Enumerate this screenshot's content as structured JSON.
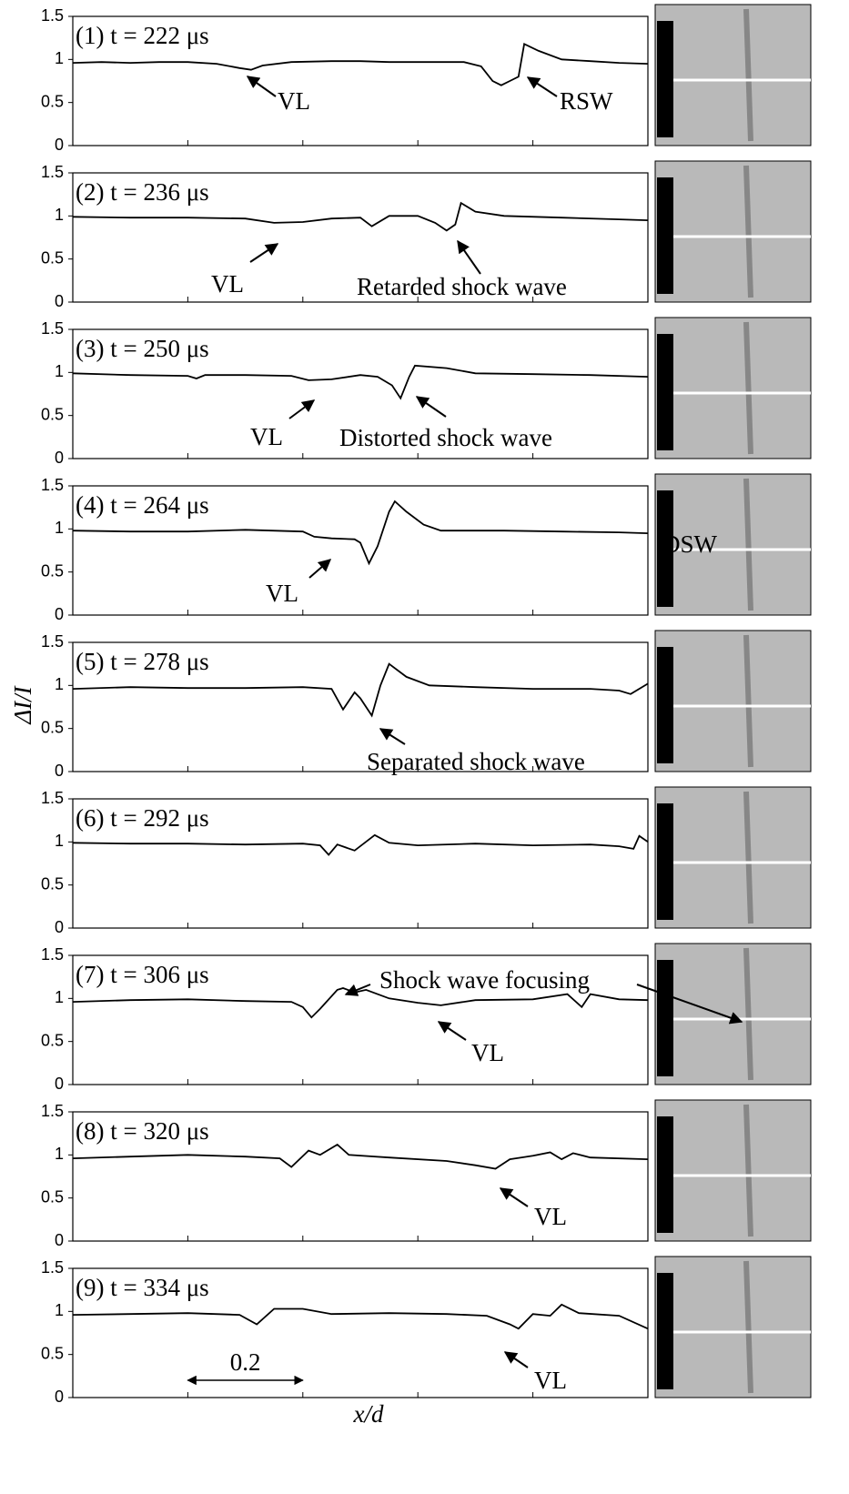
{
  "y_label": "ΔI/I",
  "x_label": "x/d",
  "scale_bar": {
    "value": 0.2,
    "start": 0.2
  },
  "chart_data": [
    {
      "type": "line",
      "title": "(1) t = 222 μs",
      "color": "#000000",
      "xlim": [
        0,
        1
      ],
      "xticks": [
        0.2,
        0.4,
        0.6,
        0.8
      ],
      "ylim": [
        0,
        1.5
      ],
      "yticks": [
        0,
        0.5,
        1,
        1.5
      ],
      "x": [
        0,
        0.05,
        0.1,
        0.15,
        0.2,
        0.25,
        0.29,
        0.31,
        0.33,
        0.38,
        0.45,
        0.5,
        0.55,
        0.6,
        0.68,
        0.71,
        0.73,
        0.745,
        0.76,
        0.775,
        0.785,
        0.81,
        0.85,
        0.9,
        0.95,
        1
      ],
      "values": [
        0.96,
        0.97,
        0.96,
        0.97,
        0.97,
        0.95,
        0.9,
        0.88,
        0.93,
        0.97,
        0.98,
        0.98,
        0.97,
        0.97,
        0.97,
        0.92,
        0.75,
        0.7,
        0.75,
        0.8,
        1.18,
        1.1,
        1.0,
        0.98,
        0.96,
        0.95
      ],
      "annotations": [
        "VL",
        "RSW"
      ]
    },
    {
      "type": "line",
      "title": "(2) t = 236 μs",
      "color": "#000000",
      "xlim": [
        0,
        1
      ],
      "xticks": [
        0.2,
        0.4,
        0.6,
        0.8
      ],
      "ylim": [
        0,
        1.5
      ],
      "yticks": [
        0,
        0.5,
        1,
        1.5
      ],
      "x": [
        0,
        0.1,
        0.2,
        0.3,
        0.35,
        0.4,
        0.45,
        0.5,
        0.52,
        0.55,
        0.6,
        0.63,
        0.65,
        0.665,
        0.675,
        0.7,
        0.75,
        0.85,
        0.95,
        1
      ],
      "values": [
        0.99,
        0.98,
        0.98,
        0.97,
        0.92,
        0.93,
        0.97,
        0.98,
        0.88,
        1.0,
        1.0,
        0.92,
        0.83,
        0.9,
        1.15,
        1.05,
        1.0,
        0.98,
        0.96,
        0.95
      ],
      "annotations": [
        "VL",
        "Retarded shock wave"
      ]
    },
    {
      "type": "line",
      "title": "(3) t = 250 μs",
      "color": "#000000",
      "xlim": [
        0,
        1
      ],
      "xticks": [
        0.2,
        0.4,
        0.6,
        0.8
      ],
      "ylim": [
        0,
        1.5
      ],
      "yticks": [
        0,
        0.5,
        1,
        1.5
      ],
      "x": [
        0,
        0.1,
        0.2,
        0.215,
        0.23,
        0.3,
        0.38,
        0.41,
        0.45,
        0.5,
        0.53,
        0.555,
        0.57,
        0.585,
        0.595,
        0.65,
        0.7,
        0.8,
        0.9,
        1
      ],
      "values": [
        0.99,
        0.97,
        0.96,
        0.93,
        0.97,
        0.97,
        0.96,
        0.91,
        0.92,
        0.97,
        0.95,
        0.85,
        0.7,
        0.95,
        1.08,
        1.05,
        0.99,
        0.98,
        0.97,
        0.95
      ],
      "annotations": [
        "VL",
        "Distorted shock wave"
      ]
    },
    {
      "type": "line",
      "title": "(4) t = 264 μs",
      "color": "#000000",
      "xlim": [
        0,
        1
      ],
      "xticks": [
        0.2,
        0.4,
        0.6,
        0.8
      ],
      "ylim": [
        0,
        1.5
      ],
      "yticks": [
        0,
        0.5,
        1,
        1.5
      ],
      "x": [
        0,
        0.1,
        0.2,
        0.3,
        0.4,
        0.42,
        0.45,
        0.49,
        0.5,
        0.515,
        0.53,
        0.55,
        0.56,
        0.58,
        0.61,
        0.64,
        0.75,
        0.85,
        0.95,
        1
      ],
      "values": [
        0.98,
        0.97,
        0.97,
        0.99,
        0.97,
        0.91,
        0.89,
        0.88,
        0.84,
        0.6,
        0.8,
        1.2,
        1.32,
        1.2,
        1.05,
        0.98,
        0.98,
        0.97,
        0.96,
        0.95
      ],
      "annotations": [
        "VL",
        "DSW"
      ]
    },
    {
      "type": "line",
      "title": "(5) t = 278 μs",
      "color": "#000000",
      "xlim": [
        0,
        1
      ],
      "xticks": [
        0.2,
        0.4,
        0.6,
        0.8
      ],
      "ylim": [
        0,
        1.5
      ],
      "yticks": [
        0,
        0.5,
        1,
        1.5
      ],
      "x": [
        0,
        0.1,
        0.2,
        0.3,
        0.4,
        0.45,
        0.47,
        0.49,
        0.5,
        0.52,
        0.535,
        0.55,
        0.58,
        0.62,
        0.7,
        0.8,
        0.9,
        0.95,
        0.97,
        1
      ],
      "values": [
        0.96,
        0.98,
        0.97,
        0.97,
        0.98,
        0.96,
        0.72,
        0.92,
        0.85,
        0.65,
        1.0,
        1.25,
        1.1,
        1.0,
        0.98,
        0.96,
        0.96,
        0.94,
        0.9,
        1.02
      ],
      "annotations": [
        "Separated shock wave"
      ]
    },
    {
      "type": "line",
      "title": "(6) t = 292 μs",
      "color": "#000000",
      "xlim": [
        0,
        1
      ],
      "xticks": [
        0.2,
        0.4,
        0.6,
        0.8
      ],
      "ylim": [
        0,
        1.5
      ],
      "yticks": [
        0,
        0.5,
        1,
        1.5
      ],
      "x": [
        0,
        0.1,
        0.2,
        0.3,
        0.4,
        0.43,
        0.445,
        0.46,
        0.49,
        0.525,
        0.55,
        0.6,
        0.7,
        0.8,
        0.9,
        0.95,
        0.975,
        0.985,
        1
      ],
      "values": [
        0.99,
        0.98,
        0.98,
        0.97,
        0.98,
        0.96,
        0.85,
        0.97,
        0.9,
        1.08,
        0.99,
        0.96,
        0.98,
        0.96,
        0.97,
        0.95,
        0.92,
        1.07,
        1.0
      ],
      "annotations": []
    },
    {
      "type": "line",
      "title": "(7) t = 306 μs",
      "color": "#000000",
      "xlim": [
        0,
        1
      ],
      "xticks": [
        0.2,
        0.4,
        0.6,
        0.8
      ],
      "ylim": [
        0,
        1.5
      ],
      "yticks": [
        0,
        0.5,
        1,
        1.5
      ],
      "x": [
        0,
        0.1,
        0.2,
        0.3,
        0.38,
        0.4,
        0.415,
        0.43,
        0.46,
        0.47,
        0.49,
        0.51,
        0.55,
        0.6,
        0.64,
        0.7,
        0.8,
        0.86,
        0.885,
        0.9,
        0.95,
        1
      ],
      "values": [
        0.96,
        0.98,
        0.99,
        0.97,
        0.96,
        0.9,
        0.78,
        0.88,
        1.1,
        1.12,
        1.07,
        1.1,
        1.0,
        0.95,
        0.92,
        0.98,
        0.99,
        1.05,
        0.9,
        1.05,
        0.99,
        0.98
      ],
      "annotations": [
        "Shock wave focusing",
        "VL"
      ]
    },
    {
      "type": "line",
      "title": "(8) t = 320 μs",
      "color": "#000000",
      "xlim": [
        0,
        1
      ],
      "xticks": [
        0.2,
        0.4,
        0.6,
        0.8
      ],
      "ylim": [
        0,
        1.5
      ],
      "yticks": [
        0,
        0.5,
        1,
        1.5
      ],
      "x": [
        0,
        0.1,
        0.2,
        0.3,
        0.36,
        0.38,
        0.41,
        0.43,
        0.46,
        0.48,
        0.55,
        0.65,
        0.7,
        0.735,
        0.76,
        0.8,
        0.83,
        0.85,
        0.87,
        0.9,
        1
      ],
      "values": [
        0.96,
        0.98,
        1.0,
        0.98,
        0.96,
        0.86,
        1.05,
        1.0,
        1.12,
        1.0,
        0.97,
        0.93,
        0.88,
        0.84,
        0.95,
        0.99,
        1.03,
        0.95,
        1.02,
        0.97,
        0.95
      ],
      "annotations": [
        "VL"
      ]
    },
    {
      "type": "line",
      "title": "(9) t = 334 μs",
      "color": "#000000",
      "xlim": [
        0,
        1
      ],
      "xticks": [
        0.2,
        0.4,
        0.6,
        0.8
      ],
      "ylim": [
        0,
        1.5
      ],
      "yticks": [
        0,
        0.5,
        1,
        1.5
      ],
      "x": [
        0,
        0.1,
        0.2,
        0.29,
        0.32,
        0.35,
        0.4,
        0.45,
        0.55,
        0.65,
        0.72,
        0.76,
        0.775,
        0.8,
        0.83,
        0.85,
        0.88,
        0.95,
        1
      ],
      "values": [
        0.96,
        0.97,
        0.98,
        0.96,
        0.85,
        1.03,
        1.03,
        0.97,
        0.98,
        0.97,
        0.95,
        0.85,
        0.8,
        0.97,
        0.95,
        1.08,
        0.98,
        0.95,
        0.8
      ],
      "annotations": [
        "VL"
      ]
    }
  ]
}
